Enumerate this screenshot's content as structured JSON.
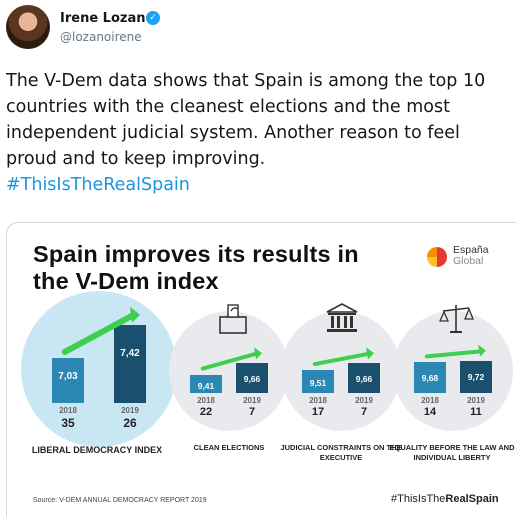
{
  "author": {
    "name": "Irene Lozano",
    "handle": "@lozanoirene",
    "verified_icon": "verified-badge-icon"
  },
  "tweet": {
    "text": "The V-Dem data shows that Spain is among the top 10 countries with the cleanest elections and the most independent judicial system. Another reason to feel proud and to keep improving.",
    "hashtag": "#ThisIsTheRealSpain"
  },
  "infographic": {
    "title_line1": "Spain improves its results in",
    "title_line2": "the V-Dem index",
    "logo_line1": "España",
    "logo_line2": "Global",
    "source": "Source: V-DEM ANNUAL DEMOCRACY REPORT 2019",
    "hashtag_prefix": "#ThisIsThe",
    "hashtag_bold": "RealSpain",
    "colors": {
      "bar_2018": "#2b87b3",
      "bar_2019": "#1b4f6e",
      "arrow": "#3fcf4f",
      "highlight_circle": "#c9e7f3",
      "circle": "#e8eaed"
    }
  },
  "chart_data": {
    "type": "bar",
    "categories": [
      "LIBERAL DEMOCRACY INDEX",
      "CLEAN ELECTIONS",
      "JUDICIAL CONSTRAINTS ON THE EXECUTIVE",
      "EQUALITY BEFORE THE LAW AND INDIVIDUAL LIBERTY"
    ],
    "x": [
      "2018",
      "2019"
    ],
    "series": [
      {
        "name": "2018",
        "values": [
          7.03,
          9.41,
          9.51,
          9.68
        ],
        "labels": [
          "7,03",
          "9,41",
          "9,51",
          "9,68"
        ],
        "ranks": [
          "35",
          "22",
          "17",
          "14"
        ]
      },
      {
        "name": "2019",
        "values": [
          7.42,
          9.66,
          9.66,
          9.72
        ],
        "labels": [
          "7,42",
          "9,66",
          "9,66",
          "9,72"
        ],
        "ranks": [
          "26",
          "7",
          "7",
          "11"
        ]
      }
    ],
    "icons": [
      "",
      "ballot-box-icon",
      "courthouse-icon",
      "scales-icon"
    ]
  }
}
